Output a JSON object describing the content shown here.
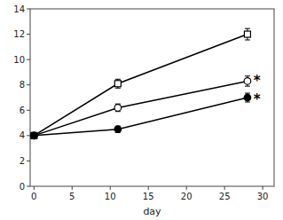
{
  "chart_data": {
    "type": "line",
    "x": [
      0,
      11,
      28
    ],
    "series": [
      {
        "color": "black",
        "marker": "square-open",
        "values": [
          4.0,
          8.1,
          12.0
        ],
        "errors": [
          0.15,
          0.35,
          0.45
        ]
      },
      {
        "color": "black",
        "marker": "circle-open",
        "values": [
          4.0,
          6.2,
          8.3
        ],
        "errors": [
          0.15,
          0.3,
          0.4
        ]
      },
      {
        "color": "black",
        "marker": "circle-filled",
        "values": [
          4.0,
          4.5,
          7.0
        ],
        "errors": [
          0.15,
          0.25,
          0.35
        ]
      }
    ],
    "xlabel": "day",
    "xlim": [
      -0.5,
      31.5
    ],
    "ylim": [
      0,
      14
    ],
    "xticks": [
      0,
      5,
      10,
      15,
      20,
      25,
      30
    ],
    "yticks": [
      0,
      2,
      4,
      6,
      8,
      10,
      12,
      14
    ],
    "grid": false,
    "annotations": [
      {
        "text": "*",
        "x": 28.8,
        "y": 8.3
      },
      {
        "text": "*",
        "x": 28.8,
        "y": 6.85
      }
    ]
  }
}
